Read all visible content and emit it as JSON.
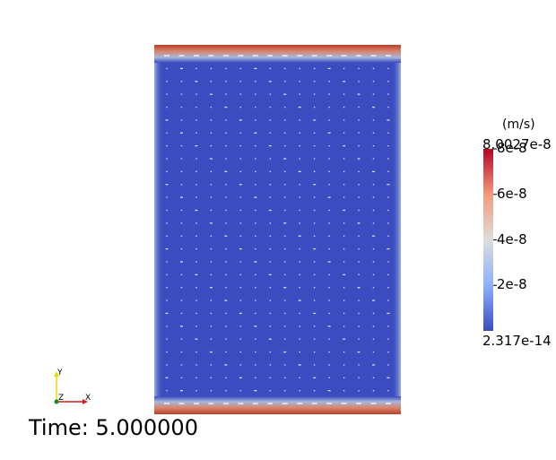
{
  "time": {
    "label": "Time: 5.000000"
  },
  "colorbar": {
    "units": "(m/s)",
    "max_label": "8.0027e-8",
    "min_label": "2.317e-14",
    "ticks": [
      {
        "value": 8e-08,
        "label": "8e-8"
      },
      {
        "value": 6e-08,
        "label": "6e-8"
      },
      {
        "value": 4e-08,
        "label": "4e-8"
      },
      {
        "value": 2e-08,
        "label": "2e-8"
      }
    ],
    "range": [
      2.317e-14,
      8.0027e-08
    ],
    "colormap": [
      "#3b4cc0",
      "#8db0fe",
      "#dddddd",
      "#f49a7b",
      "#b40426"
    ]
  },
  "axes": {
    "x": "X",
    "y": "Y",
    "z": "Z"
  },
  "field": {
    "background_color": "#3b4cc0",
    "high_color": "#c0462f",
    "vector_rows": 28,
    "vector_cols": 16
  }
}
